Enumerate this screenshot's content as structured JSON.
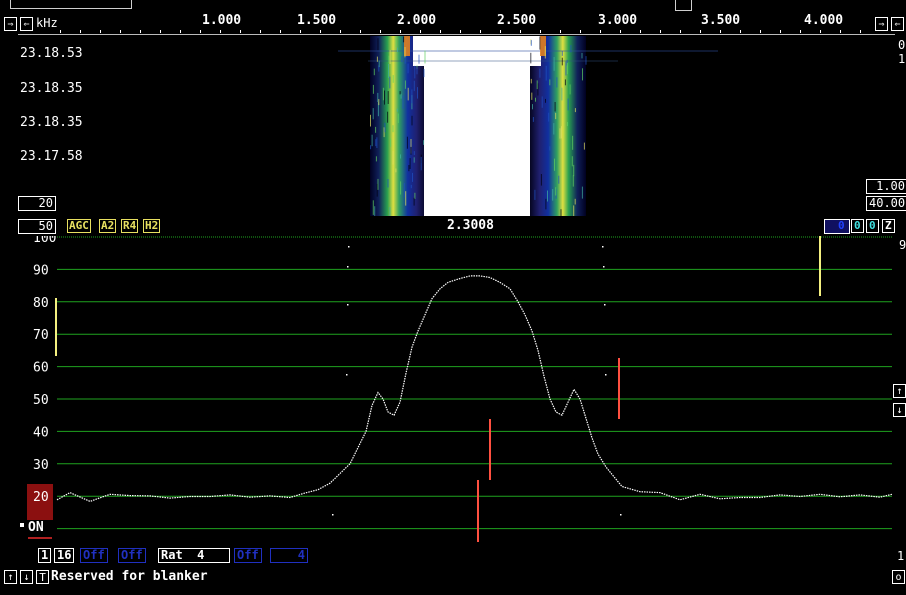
{
  "scale": {
    "unit": "kHz",
    "ticks": [
      "1.000",
      "1.500",
      "2.000",
      "2.500",
      "3.000",
      "3.500",
      "4.000"
    ]
  },
  "waterfall": {
    "times": [
      "23.18.53",
      "23.18.35",
      "23.18.35",
      "23.17.58"
    ],
    "left_value": "20",
    "right_values": [
      "1.00",
      "40.00"
    ],
    "right_edge": [
      "0",
      "1"
    ]
  },
  "status": {
    "left_value": "50",
    "flags": [
      "AGC",
      "A2",
      "R4",
      "H2"
    ],
    "frequency": "2.3008",
    "right_boxes": [
      "0",
      "0",
      "Z"
    ],
    "right_char": "9"
  },
  "spectrum": {
    "y_labels": [
      "100",
      "90",
      "80",
      "70",
      "60",
      "50",
      "40",
      "30",
      "20"
    ],
    "on_label": "ON",
    "level_marker": "20",
    "right_edge": "1"
  },
  "bottom": {
    "row1": [
      "1",
      "16",
      "Off",
      "Off",
      "Rat",
      "4",
      "Off",
      "4"
    ],
    "status_text": "Reserved for blanker",
    "t_label": "T",
    "right_edge": "o"
  },
  "colors": {
    "grid": "#1fa31f",
    "trace": "#ffffff",
    "marker_red": "#ff5040",
    "marker_yellow": "#f4f080",
    "level_box": "#8b1010"
  }
}
